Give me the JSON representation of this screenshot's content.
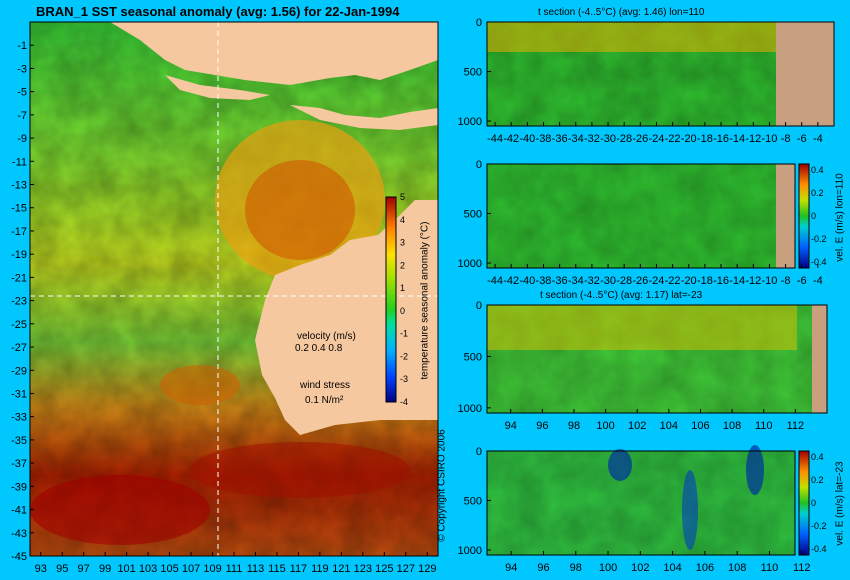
{
  "colors": {
    "bg": "#00c8ff",
    "land": "#f5c8a0",
    "sectionLand": "#c8a080",
    "dashed": "#ffffff"
  },
  "chart_data": [
    {
      "type": "heatmap",
      "title": "BRAN_1 SST seasonal anomaly (avg: 1.56) for 22-Jan-1994",
      "y_ticks": [
        "-1",
        "-3",
        "-5",
        "-7",
        "-9",
        "-11",
        "-13",
        "-15",
        "-17",
        "-19",
        "-21",
        "-23",
        "-25",
        "-27",
        "-29",
        "-31",
        "-33",
        "-35",
        "-37",
        "-39",
        "-41",
        "-43",
        "-45"
      ],
      "x_ticks": [
        "93",
        "95",
        "97",
        "99",
        "101",
        "103",
        "105",
        "107",
        "109",
        "111",
        "113",
        "115",
        "117",
        "119",
        "121",
        "123",
        "125",
        "127",
        "129"
      ],
      "xlim": [
        92,
        130
      ],
      "ylim": [
        -45,
        1
      ],
      "colorbar": {
        "label": "temperature seasonal anomaly (°C)",
        "ticks": [
          "5",
          "4",
          "3",
          "2",
          "1",
          "0",
          "-1",
          "-2",
          "-3",
          "-4"
        ],
        "range": [
          -4,
          5
        ]
      },
      "velocity_label": "velocity (m/s)",
      "velocity_scale": "0.2 0.4 0.8",
      "wind_label": "wind stress",
      "wind_scale": "0.1 N/m²",
      "crosshair": {
        "lon": 110,
        "lat": -23
      }
    },
    {
      "type": "heatmap",
      "title": "t section (-4..5°C) (avg: 1.46) lon=110",
      "x_ticks": [
        "-44",
        "-42",
        "-40",
        "-38",
        "-36",
        "-34",
        "-32",
        "-30",
        "-28",
        "-26",
        "-24",
        "-22",
        "-20",
        "-18",
        "-16",
        "-14",
        "-12",
        "-10",
        "-8",
        "-6",
        "-4"
      ],
      "y_ticks": [
        "0",
        "500",
        "1000"
      ],
      "xlim": [
        -45,
        -2
      ],
      "ylim": [
        1050,
        0
      ]
    },
    {
      "type": "heatmap",
      "title": "",
      "x_ticks": [
        "-44",
        "-42",
        "-40",
        "-38",
        "-36",
        "-34",
        "-32",
        "-30",
        "-28",
        "-26",
        "-24",
        "-22",
        "-20",
        "-18",
        "-16",
        "-14",
        "-12",
        "-10",
        "-8",
        "-6",
        "-4"
      ],
      "y_ticks": [
        "0",
        "500",
        "1000"
      ],
      "xlim": [
        -45,
        -2
      ],
      "ylim": [
        1050,
        0
      ],
      "colorbar": {
        "label": "vel. E (m/s) lon=110",
        "ticks": [
          "0.4",
          "0.2",
          "0",
          "-0.2",
          "-0.4"
        ],
        "range": [
          -0.45,
          0.45
        ]
      }
    },
    {
      "type": "heatmap",
      "title": "t section (-4..5°C) (avg: 1.17) lat=-23",
      "x_ticks": [
        "94",
        "96",
        "98",
        "100",
        "102",
        "104",
        "106",
        "108",
        "110",
        "112"
      ],
      "y_ticks": [
        "0",
        "500",
        "1000"
      ],
      "xlim": [
        92.5,
        114
      ],
      "ylim": [
        1050,
        0
      ]
    },
    {
      "type": "heatmap",
      "title": "",
      "x_ticks": [
        "94",
        "96",
        "98",
        "100",
        "102",
        "104",
        "106",
        "108",
        "110",
        "112"
      ],
      "y_ticks": [
        "0",
        "500",
        "1000"
      ],
      "xlim": [
        92.5,
        114
      ],
      "ylim": [
        1050,
        0
      ],
      "colorbar": {
        "label": "vel. E (m/s) lat=-23",
        "ticks": [
          "0.4",
          "0.2",
          "0",
          "-0.2",
          "-0.4"
        ],
        "range": [
          -0.45,
          0.45
        ]
      }
    }
  ],
  "copyright": "© Copyright CSIRO 2006"
}
